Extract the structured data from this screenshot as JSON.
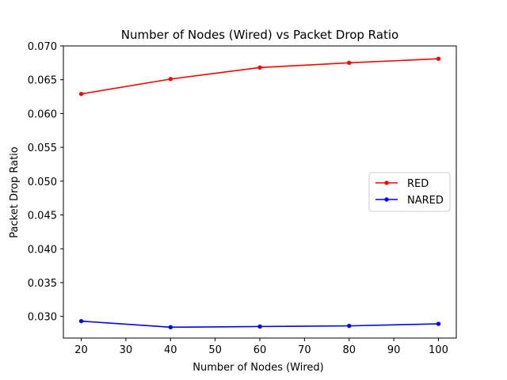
{
  "chart_data": {
    "type": "line",
    "title": "Number of Nodes (Wired)  vs Packet Drop Ratio",
    "xlabel": "Number of Nodes (Wired)",
    "ylabel": "Packet Drop Ratio",
    "x": [
      20,
      40,
      60,
      80,
      100
    ],
    "xlim": [
      16,
      104
    ],
    "ylim": [
      0.0268,
      0.07
    ],
    "xticks": [
      20,
      30,
      40,
      50,
      60,
      70,
      80,
      90,
      100
    ],
    "xtick_labels": [
      "20",
      "30",
      "40",
      "50",
      "60",
      "70",
      "80",
      "90",
      "100"
    ],
    "yticks": [
      0.03,
      0.035,
      0.04,
      0.045,
      0.05,
      0.055,
      0.06,
      0.065,
      0.07
    ],
    "ytick_labels": [
      "0.030",
      "0.035",
      "0.040",
      "0.045",
      "0.050",
      "0.055",
      "0.060",
      "0.065",
      "0.070"
    ],
    "grid": false,
    "legend_position": "center-right",
    "series": [
      {
        "name": "RED",
        "color": "#ff0000",
        "values": [
          0.0629,
          0.0651,
          0.0668,
          0.0675,
          0.0681
        ]
      },
      {
        "name": "NARED",
        "color": "#0000ff",
        "values": [
          0.0293,
          0.0284,
          0.0285,
          0.0286,
          0.0289
        ]
      }
    ]
  }
}
